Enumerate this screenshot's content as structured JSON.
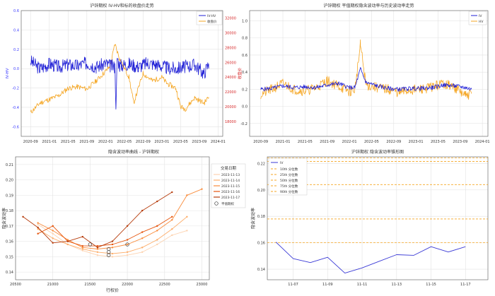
{
  "chart_data": [
    {
      "type": "line",
      "title": "沪锌期权 IV-HV和标的收盘价走势",
      "ylabel": "IV-HV",
      "ylabel_right": "收盘价",
      "x_ticks": [
        "2020-09",
        "2021-01",
        "2021-05",
        "2021-09",
        "2022-01",
        "2022-05",
        "2022-09",
        "2023-01",
        "2023-05",
        "2023-09",
        "2024-01"
      ],
      "ylim": [
        -0.7,
        0.6
      ],
      "yticks": [
        "-0.6",
        "-0.4",
        "-0.2",
        "0.0",
        "0.2",
        "0.4",
        "0.6"
      ],
      "ylim_right": [
        16000,
        33000
      ],
      "yticks_right": [
        "18000",
        "20000",
        "22000",
        "24000",
        "26000",
        "28000",
        "30000",
        "32000"
      ],
      "series": [
        {
          "name": "IV-HV",
          "color": "#1f1fd6",
          "axis": "left",
          "x": [
            "2020-09",
            "2020-11",
            "2021-01",
            "2021-03",
            "2021-05",
            "2021-07",
            "2021-09",
            "2021-11",
            "2022-01",
            "2022-02",
            "2022-03",
            "2022-03-08",
            "2022-03-15",
            "2022-04",
            "2022-06",
            "2022-08",
            "2022-10",
            "2022-12",
            "2023-02",
            "2023-04",
            "2023-06",
            "2023-08",
            "2023-10",
            "2023-11"
          ],
          "values": [
            0.08,
            0.0,
            0.05,
            0.02,
            0.04,
            0.03,
            0.06,
            0.02,
            0.05,
            0.03,
            0.02,
            -0.42,
            0.12,
            0.03,
            0.05,
            0.02,
            0.06,
            0.04,
            0.01,
            0.0,
            0.02,
            0.04,
            -0.05,
            0.05
          ]
        },
        {
          "name": "收盘价",
          "color": "#f5a623",
          "axis": "right",
          "x": [
            "2020-09",
            "2020-11",
            "2021-01",
            "2021-03",
            "2021-05",
            "2021-07",
            "2021-09",
            "2021-11",
            "2022-01",
            "2022-02",
            "2022-03",
            "2022-04",
            "2022-06",
            "2022-07",
            "2022-09",
            "2022-11",
            "2023-01",
            "2023-02",
            "2023-04",
            "2023-05",
            "2023-06",
            "2023-08",
            "2023-10",
            "2023-11"
          ],
          "values": [
            19200,
            20500,
            21000,
            21500,
            22500,
            22700,
            22400,
            23500,
            24800,
            25500,
            28500,
            26500,
            24000,
            20500,
            24500,
            23500,
            24000,
            23200,
            22500,
            20000,
            19700,
            21200,
            20500,
            21300
          ]
        }
      ]
    },
    {
      "type": "line",
      "title": "沪锌期权 平值期权隐含波动率与历史波动率走势",
      "x_ticks": [
        "2020-09",
        "2021-01",
        "2021-05",
        "2021-09",
        "2022-01",
        "2022-05",
        "2022-09",
        "2023-01",
        "2023-05",
        "2023-09",
        "2024-01"
      ],
      "ylim": [
        -0.35,
        1.12
      ],
      "yticks": [
        "-0.2",
        "0.0",
        "0.2",
        "0.4",
        "0.6",
        "0.8",
        "1.0"
      ],
      "series": [
        {
          "name": "IV",
          "color": "#1f1fd6",
          "x": [
            "2020-09",
            "2020-11",
            "2021-01",
            "2021-03",
            "2021-05",
            "2021-07",
            "2021-09",
            "2021-11",
            "2022-01",
            "2022-02",
            "2022-03",
            "2022-04",
            "2022-06",
            "2022-08",
            "2022-10",
            "2022-12",
            "2023-02",
            "2023-04",
            "2023-06",
            "2023-08",
            "2023-10",
            "2023-11"
          ],
          "values": [
            0.2,
            0.21,
            0.24,
            0.22,
            0.23,
            0.22,
            0.25,
            0.27,
            0.22,
            0.22,
            0.44,
            0.28,
            0.24,
            0.21,
            0.2,
            0.21,
            0.21,
            0.22,
            0.25,
            0.24,
            0.22,
            0.2
          ]
        },
        {
          "name": "HV",
          "color": "#f5a623",
          "x": [
            "2020-09",
            "2020-11",
            "2021-01",
            "2021-03",
            "2021-05",
            "2021-07",
            "2021-09",
            "2021-11",
            "2022-01",
            "2022-02",
            "2022-03",
            "2022-04",
            "2022-06",
            "2022-08",
            "2022-10",
            "2022-12",
            "2023-02",
            "2023-04",
            "2023-06",
            "2023-08",
            "2023-10",
            "2023-11"
          ],
          "values": [
            0.14,
            0.2,
            0.27,
            0.2,
            0.18,
            0.22,
            0.3,
            0.24,
            0.17,
            0.2,
            0.72,
            0.25,
            0.22,
            0.2,
            0.16,
            0.19,
            0.2,
            0.23,
            0.27,
            0.22,
            0.12,
            0.15
          ]
        }
      ]
    },
    {
      "type": "line",
      "title": "隐含波动率曲线 - 沪锌期权",
      "xlabel": "行权价",
      "ylabel": "隐含波动率",
      "xlim": [
        20500,
        23100
      ],
      "ylim": [
        0.135,
        0.215
      ],
      "xticks": [
        "20500",
        "21000",
        "21500",
        "22000",
        "22500",
        "23000"
      ],
      "yticks": [
        "0.14",
        "0.15",
        "0.16",
        "0.17",
        "0.18",
        "0.19",
        "0.20",
        "0.21"
      ],
      "legend_title": "交易日期",
      "atm_label": "平值期权",
      "series": [
        {
          "name": "2023-11-13",
          "color": "#fdd3b0",
          "x": [
            20800,
            21000,
            21200,
            21400,
            21600,
            21800,
            22000,
            22200,
            22400,
            22600,
            22800
          ],
          "values": [
            0.171,
            0.165,
            0.158,
            0.154,
            0.151,
            0.15,
            0.151,
            0.153,
            0.158,
            0.164,
            0.167
          ]
        },
        {
          "name": "2023-11-14",
          "color": "#fdae6b",
          "x": [
            20800,
            21000,
            21200,
            21400,
            21600,
            21800,
            22000,
            22200,
            22400,
            22600,
            22800
          ],
          "values": [
            0.168,
            0.162,
            0.158,
            0.155,
            0.153,
            0.152,
            0.153,
            0.156,
            0.161,
            0.168,
            0.176
          ]
        },
        {
          "name": "2023-11-15",
          "color": "#f98c3c",
          "x": [
            20800,
            21000,
            21200,
            21400,
            21600,
            21800,
            22000,
            22200,
            22400,
            22600,
            22800,
            23000
          ],
          "values": [
            0.172,
            0.167,
            0.161,
            0.156,
            0.155,
            0.156,
            0.158,
            0.162,
            0.167,
            0.174,
            0.19,
            0.194
          ]
        },
        {
          "name": "2023-11-16",
          "color": "#e6550d",
          "x": [
            20800,
            21000,
            21200,
            21400,
            21600,
            21800,
            22000,
            22200,
            22400,
            22600
          ],
          "values": [
            0.165,
            0.17,
            0.16,
            0.157,
            0.157,
            0.158,
            0.161,
            0.166,
            0.17,
            0.176
          ]
        },
        {
          "name": "2023-11-17",
          "color": "#b63c0c",
          "x": [
            20600,
            20800,
            21000,
            21200,
            21400,
            21600,
            21800,
            22000,
            22200,
            22400,
            22600
          ],
          "values": [
            0.176,
            0.169,
            0.159,
            0.16,
            0.163,
            0.156,
            0.16,
            0.17,
            0.18,
            0.186,
            0.192
          ]
        }
      ],
      "atm_points": [
        {
          "x": 21500,
          "y": 0.158
        },
        {
          "x": 21750,
          "y": 0.155
        },
        {
          "x": 21750,
          "y": 0.153
        },
        {
          "x": 21750,
          "y": 0.151
        },
        {
          "x": 22000,
          "y": 0.158
        }
      ]
    },
    {
      "type": "line",
      "title": "沪锌期权 隐含波动率锥形图",
      "ylabel": "隐含波动率",
      "x_ticks": [
        "11-07",
        "11-09",
        "11-11",
        "11-13",
        "11-15",
        "11-17"
      ],
      "xlim": [
        0,
        12
      ],
      "ylim": [
        0.132,
        0.225
      ],
      "yticks": [
        "0.14",
        "0.16",
        "0.18",
        "0.20",
        "0.22"
      ],
      "series": [
        {
          "name": "IV",
          "color": "#3a3ad6",
          "x": [
            0,
            1,
            2,
            3,
            4,
            5,
            6,
            7,
            8,
            9,
            10,
            11
          ],
          "values": [
            0.1605,
            0.148,
            0.145,
            0.149,
            0.137,
            0.141,
            0.146,
            0.151,
            0.1505,
            0.157,
            0.153,
            0.157
          ]
        }
      ],
      "percentiles": [
        {
          "name": "10th 分位数",
          "value": 0.16
        },
        {
          "name": "25th 分位数",
          "value": 0.178
        },
        {
          "name": "50th 分位数",
          "value": 0.204
        },
        {
          "name": "75th 分位数",
          "value": 0.2215
        },
        {
          "name": "90th 分位数",
          "value": 0.258
        }
      ]
    }
  ]
}
